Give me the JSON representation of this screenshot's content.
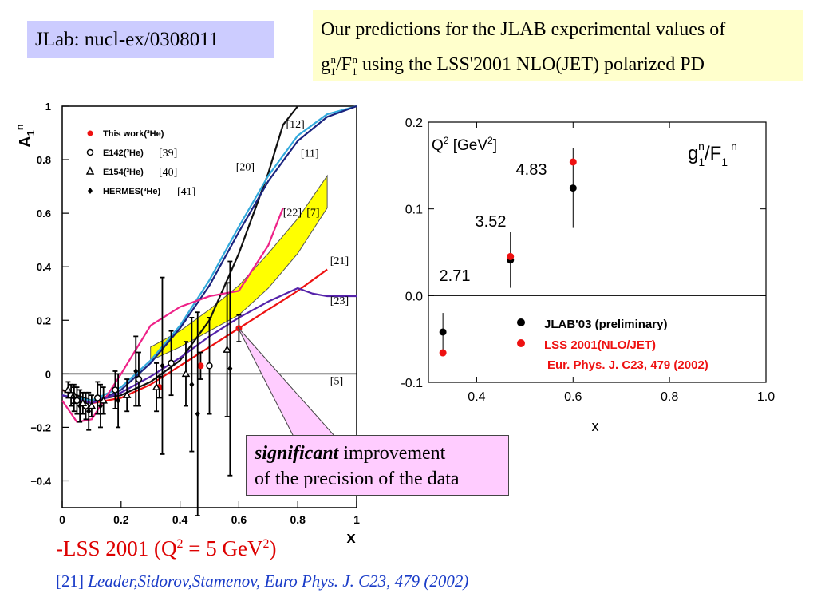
{
  "header": {
    "jlab_tag": "JLab: nucl-ex/0308011",
    "prediction_line1": "Our  predictions for the JLAB experimental values of",
    "prediction_g": "g",
    "prediction_g_sup": "n",
    "prediction_g_sub": "1",
    "prediction_slash": "/F",
    "prediction_f_sup": "n",
    "prediction_f_sub": "1",
    "prediction_line2_rest": "  using the LSS'2001 NLO(JET) polarized PD"
  },
  "callout": {
    "emph": "significant",
    "rest_line1": " improvement",
    "line2": "of the precision of the data"
  },
  "footer": {
    "lss_prefix": "-LSS 2001 (Q",
    "lss_sup1": "2",
    "lss_mid": " = 5 GeV",
    "lss_sup2": "2",
    "lss_end": ")",
    "ref_num": "[21] ",
    "ref_text": "Leader,Sidorov,Stamenov, Euro Phys. J. C23, 479 (2002)"
  },
  "colors": {
    "black_series": "#000000",
    "red_series": "#ee1111",
    "band_fill": "#ffff00",
    "cyan_curve": "#33aadd",
    "navy_curve": "#1a237e",
    "magenta_curve": "#ee2288",
    "purple_curve": "#5522aa"
  },
  "chart_data": [
    {
      "type": "scatter",
      "title": "",
      "ylabel": "A1n",
      "ylabel_main": "A",
      "ylabel_sub": "1",
      "ylabel_sup": "n",
      "xlabel": "x",
      "xlim": [
        0,
        1
      ],
      "ylim": [
        -0.5,
        1
      ],
      "x_ticks": [
        {
          "v": 0,
          "label": "0"
        },
        {
          "v": 0.2,
          "label": "0.2"
        },
        {
          "v": 0.4,
          "label": "0.4"
        },
        {
          "v": 0.6,
          "label": "0.6"
        },
        {
          "v": 0.8,
          "label": "0.8"
        },
        {
          "v": 1.0,
          "label": "1"
        }
      ],
      "y_ticks": [
        {
          "v": 1.0,
          "label": "1"
        },
        {
          "v": 0.8,
          "label": "0.8"
        },
        {
          "v": 0.6,
          "label": "0.6"
        },
        {
          "v": 0.4,
          "label": "0.4"
        },
        {
          "v": 0.2,
          "label": "0.2"
        },
        {
          "v": 0,
          "label": "0"
        },
        {
          "v": -0.2,
          "label": "−0.2"
        },
        {
          "v": -0.4,
          "label": "−0.4"
        }
      ],
      "legend": [
        {
          "marker": "red-dot",
          "label": "This work(³He)"
        },
        {
          "marker": "circle",
          "label": "E142(³He)",
          "ref": "[39]"
        },
        {
          "marker": "triangle",
          "label": "E154(³He)",
          "ref": "[40]"
        },
        {
          "marker": "diamond",
          "label": "HERMES(³He)",
          "ref": "[41]"
        }
      ],
      "curve_labels": [
        {
          "label": "[12]",
          "x": 0.76,
          "y": 0.92
        },
        {
          "label": "[11]",
          "x": 0.81,
          "y": 0.81
        },
        {
          "label": "[20]",
          "x": 0.59,
          "y": 0.76
        },
        {
          "label": "[22]",
          "x": 0.75,
          "y": 0.59
        },
        {
          "label": "[7]",
          "x": 0.83,
          "y": 0.59
        },
        {
          "label": "[21]",
          "x": 0.91,
          "y": 0.41
        },
        {
          "label": "[23]",
          "x": 0.91,
          "y": 0.26
        },
        {
          "label": "[5]",
          "x": 0.91,
          "y": -0.04
        }
      ],
      "series": [
        {
          "name": "This work(³He)",
          "marker": "red-dot",
          "points": [
            {
              "x": 0.33,
              "y": -0.05,
              "err": 0.04
            },
            {
              "x": 0.47,
              "y": 0.03,
              "err": 0.05
            },
            {
              "x": 0.6,
              "y": 0.17,
              "err": 0.05
            }
          ]
        },
        {
          "name": "E142(³He)",
          "marker": "circle",
          "points": [
            {
              "x": 0.03,
              "y": -0.08,
              "err": 0.04
            },
            {
              "x": 0.05,
              "y": -0.1,
              "err": 0.05
            },
            {
              "x": 0.08,
              "y": -0.12,
              "err": 0.05
            },
            {
              "x": 0.12,
              "y": -0.09,
              "err": 0.06
            },
            {
              "x": 0.18,
              "y": -0.06,
              "err": 0.07
            },
            {
              "x": 0.26,
              "y": -0.02,
              "err": 0.1
            },
            {
              "x": 0.37,
              "y": 0.04,
              "err": 0.12
            },
            {
              "x": 0.5,
              "y": 0.03,
              "err": 0.18
            }
          ]
        },
        {
          "name": "E154(³He)",
          "marker": "triangle",
          "points": [
            {
              "x": 0.02,
              "y": -0.06,
              "err": 0.03
            },
            {
              "x": 0.04,
              "y": -0.08,
              "err": 0.03
            },
            {
              "x": 0.07,
              "y": -0.11,
              "err": 0.04
            },
            {
              "x": 0.1,
              "y": -0.12,
              "err": 0.04
            },
            {
              "x": 0.14,
              "y": -0.1,
              "err": 0.05
            },
            {
              "x": 0.22,
              "y": -0.08,
              "err": 0.06
            },
            {
              "x": 0.32,
              "y": -0.05,
              "err": 0.09
            },
            {
              "x": 0.42,
              "y": 0.0,
              "err": 0.12
            },
            {
              "x": 0.56,
              "y": 0.09,
              "err": 0.25
            }
          ]
        },
        {
          "name": "HERMES(³He)",
          "marker": "diamond",
          "points": [
            {
              "x": 0.04,
              "y": -0.09,
              "err": 0.05
            },
            {
              "x": 0.06,
              "y": -0.12,
              "err": 0.06
            },
            {
              "x": 0.09,
              "y": -0.14,
              "err": 0.07
            },
            {
              "x": 0.13,
              "y": -0.12,
              "err": 0.08
            },
            {
              "x": 0.19,
              "y": -0.1,
              "err": 0.1
            },
            {
              "x": 0.25,
              "y": 0.01,
              "err": 0.13
            },
            {
              "x": 0.34,
              "y": 0.03,
              "err": 0.33
            },
            {
              "x": 0.44,
              "y": -0.04,
              "err": 0.25
            },
            {
              "x": 0.46,
              "y": -0.15,
              "err": 0.38
            },
            {
              "x": 0.57,
              "y": 0.02,
              "err": 0.4
            }
          ]
        }
      ],
      "curves": [
        {
          "name": "[5]",
          "style": "flat-black",
          "points": [
            [
              0,
              0
            ],
            [
              1,
              0
            ]
          ]
        },
        {
          "name": "[21]",
          "color": "red",
          "points": [
            [
              0.0,
              -0.06
            ],
            [
              0.1,
              -0.11
            ],
            [
              0.2,
              -0.09
            ],
            [
              0.3,
              -0.04
            ],
            [
              0.4,
              0.03
            ],
            [
              0.5,
              0.1
            ],
            [
              0.6,
              0.17
            ],
            [
              0.7,
              0.24
            ],
            [
              0.8,
              0.31
            ],
            [
              0.9,
              0.39
            ]
          ]
        },
        {
          "name": "[20]",
          "color": "black",
          "points": [
            [
              0.0,
              -0.06
            ],
            [
              0.1,
              -0.1
            ],
            [
              0.2,
              -0.08
            ],
            [
              0.3,
              -0.03
            ],
            [
              0.4,
              0.05
            ],
            [
              0.5,
              0.2
            ],
            [
              0.6,
              0.45
            ],
            [
              0.7,
              0.75
            ],
            [
              0.75,
              0.93
            ],
            [
              0.8,
              1.0
            ]
          ]
        },
        {
          "name": "[12]",
          "color": "cyan",
          "points": [
            [
              0.0,
              -0.08
            ],
            [
              0.1,
              -0.1
            ],
            [
              0.2,
              -0.05
            ],
            [
              0.3,
              0.05
            ],
            [
              0.4,
              0.18
            ],
            [
              0.5,
              0.35
            ],
            [
              0.6,
              0.55
            ],
            [
              0.7,
              0.74
            ],
            [
              0.8,
              0.89
            ],
            [
              0.9,
              0.97
            ],
            [
              1.0,
              1.0
            ]
          ]
        },
        {
          "name": "[11]",
          "color": "navy",
          "points": [
            [
              0.0,
              -0.08
            ],
            [
              0.1,
              -0.11
            ],
            [
              0.2,
              -0.06
            ],
            [
              0.3,
              0.04
            ],
            [
              0.4,
              0.17
            ],
            [
              0.5,
              0.33
            ],
            [
              0.6,
              0.53
            ],
            [
              0.7,
              0.72
            ],
            [
              0.8,
              0.87
            ],
            [
              0.9,
              0.96
            ],
            [
              1.0,
              1.0
            ]
          ]
        },
        {
          "name": "[22]",
          "color": "magenta",
          "points": [
            [
              0.0,
              -0.1
            ],
            [
              0.05,
              -0.18
            ],
            [
              0.1,
              -0.17
            ],
            [
              0.2,
              0.0
            ],
            [
              0.3,
              0.18
            ],
            [
              0.4,
              0.25
            ],
            [
              0.5,
              0.29
            ],
            [
              0.6,
              0.31
            ],
            [
              0.7,
              0.48
            ],
            [
              0.75,
              0.62
            ]
          ]
        },
        {
          "name": "[23]",
          "color": "purple",
          "points": [
            [
              0.0,
              -0.08
            ],
            [
              0.1,
              -0.11
            ],
            [
              0.2,
              -0.07
            ],
            [
              0.3,
              -0.01
            ],
            [
              0.4,
              0.06
            ],
            [
              0.5,
              0.14
            ],
            [
              0.6,
              0.21
            ],
            [
              0.7,
              0.27
            ],
            [
              0.8,
              0.32
            ],
            [
              0.85,
              0.3
            ],
            [
              0.9,
              0.29
            ],
            [
              1.0,
              0.29
            ]
          ]
        }
      ],
      "band": {
        "name": "[7]",
        "upper": [
          [
            0.3,
            0.1
          ],
          [
            0.4,
            0.16
          ],
          [
            0.5,
            0.24
          ],
          [
            0.6,
            0.33
          ],
          [
            0.7,
            0.45
          ],
          [
            0.8,
            0.58
          ],
          [
            0.9,
            0.74
          ]
        ],
        "lower": [
          [
            0.3,
            0.05
          ],
          [
            0.4,
            0.1
          ],
          [
            0.5,
            0.16
          ],
          [
            0.6,
            0.22
          ],
          [
            0.7,
            0.32
          ],
          [
            0.8,
            0.45
          ],
          [
            0.9,
            0.62
          ]
        ]
      }
    },
    {
      "type": "scatter",
      "title": "g1n/F1n",
      "title_g": "g",
      "title_g_sub": "1",
      "title_g_sup": "n",
      "title_slash": "/F",
      "title_f_sub": "1",
      "title_f_sup": "n",
      "xlabel": "x",
      "q2_label": "Q",
      "q2_sup": "2",
      "q2_unit": " [GeV",
      "q2_unit_sup": "2",
      "q2_end": "]",
      "xlim": [
        0.3,
        1.0
      ],
      "ylim": [
        -0.1,
        0.2
      ],
      "x_ticks": [
        {
          "v": 0.4,
          "label": "0.4"
        },
        {
          "v": 0.6,
          "label": "0.6"
        },
        {
          "v": 0.8,
          "label": "0.8"
        },
        {
          "v": 1.0,
          "label": "1.0"
        }
      ],
      "y_ticks": [
        {
          "v": 0.2,
          "label": "0.2"
        },
        {
          "v": 0.1,
          "label": "0.1"
        },
        {
          "v": 0.0,
          "label": "0.0"
        },
        {
          "v": -0.1,
          "label": "-0.1"
        }
      ],
      "q2_labels": [
        {
          "label": "2.71",
          "x": 0.33
        },
        {
          "label": "3.52",
          "x": 0.47
        },
        {
          "label": "4.83",
          "x": 0.6
        }
      ],
      "legend": [
        {
          "marker": "black-dot",
          "label": "JLAB'03 (preliminary)"
        },
        {
          "marker": "red-dot",
          "label": "LSS 2001(NLO/JET)"
        },
        {
          "marker": "none",
          "label": "Eur. Phys. J. C23, 479 (2002)"
        }
      ],
      "series": [
        {
          "name": "JLAB'03 (preliminary)",
          "color": "black",
          "points": [
            {
              "x": 0.33,
              "y": -0.042,
              "err_lo": 0.022,
              "err_hi": 0.022
            },
            {
              "x": 0.47,
              "y": 0.041,
              "err_lo": 0.032,
              "err_hi": 0.032
            },
            {
              "x": 0.6,
              "y": 0.124,
              "err_lo": 0.046,
              "err_hi": 0.046
            }
          ]
        },
        {
          "name": "LSS 2001(NLO/JET)",
          "color": "red",
          "points": [
            {
              "x": 0.33,
              "y": -0.066
            },
            {
              "x": 0.47,
              "y": 0.045
            },
            {
              "x": 0.6,
              "y": 0.154
            }
          ]
        }
      ]
    }
  ]
}
